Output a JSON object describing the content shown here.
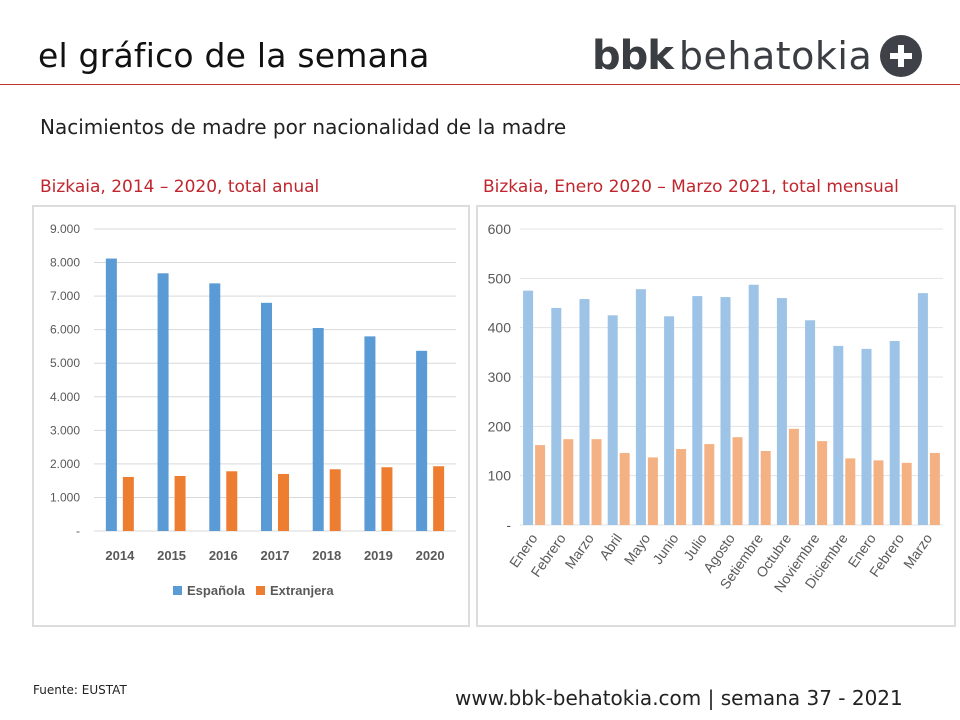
{
  "header": {
    "title": "el gráfico de la semana",
    "logo_bold": "bbk",
    "logo_light": "behatokia"
  },
  "subtitle": "Nacimientos de madre por nacionalidad de la madre",
  "source": "Fuente: EUSTAT",
  "footer": "www.bbk-behatokia.com | semana 37 - 2021",
  "colors": {
    "espanola": "#5b9bd5",
    "extranjera": "#ed7d31",
    "espanola_light": "#9dc3e6",
    "extranjera_light": "#f4b183",
    "rule": "#c0392b",
    "title_red": "#c0262d"
  },
  "chart_data": [
    {
      "type": "bar",
      "title": "Bizkaia, 2014 – 2020, total anual",
      "categories": [
        "2014",
        "2015",
        "2016",
        "2017",
        "2018",
        "2019",
        "2020"
      ],
      "series": [
        {
          "name": "Española",
          "values": [
            8120,
            7680,
            7380,
            6800,
            6050,
            5800,
            5370
          ]
        },
        {
          "name": "Extranjera",
          "values": [
            1610,
            1640,
            1780,
            1700,
            1840,
            1900,
            1930
          ]
        }
      ],
      "ylim": [
        0,
        9000
      ],
      "yticks": [
        0,
        1000,
        2000,
        3000,
        4000,
        5000,
        6000,
        7000,
        8000,
        9000
      ],
      "ytick_labels": [
        "-",
        "1.000",
        "2.000",
        "3.000",
        "4.000",
        "5.000",
        "6.000",
        "7.000",
        "8.000",
        "9.000"
      ],
      "legend": [
        "Española",
        "Extranjera"
      ],
      "legend_position": "bottom",
      "grid": true
    },
    {
      "type": "bar",
      "title": "Bizkaia, Enero 2020 – Marzo 2021, total mensual",
      "categories": [
        "Enero",
        "Febrero",
        "Marzo",
        "Abril",
        "Mayo",
        "Junio",
        "Julio",
        "Agosto",
        "Setiembre",
        "Octubre",
        "Noviembre",
        "Diciembre",
        "Enero",
        "Febrero",
        "Marzo"
      ],
      "series": [
        {
          "name": "Española",
          "values": [
            475,
            440,
            458,
            425,
            478,
            423,
            464,
            462,
            487,
            460,
            415,
            363,
            357,
            373,
            470
          ]
        },
        {
          "name": "Extranjera",
          "values": [
            162,
            174,
            174,
            146,
            137,
            154,
            164,
            178,
            150,
            195,
            170,
            135,
            131,
            126,
            146
          ]
        }
      ],
      "ylim": [
        0,
        600
      ],
      "yticks": [
        0,
        100,
        200,
        300,
        400,
        500,
        600
      ],
      "ytick_labels": [
        "-",
        "100",
        "200",
        "300",
        "400",
        "500",
        "600"
      ],
      "grid": true
    }
  ]
}
